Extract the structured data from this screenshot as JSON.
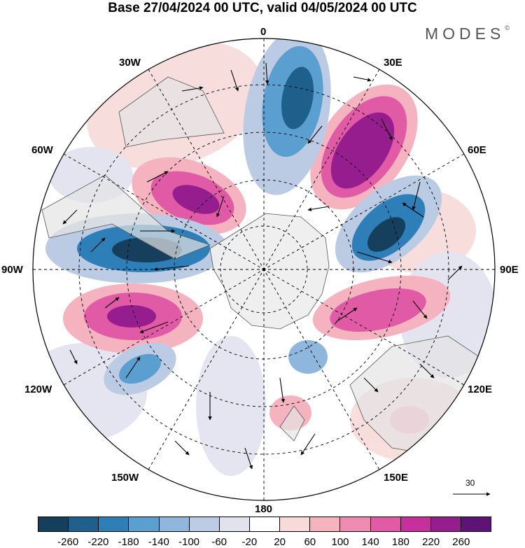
{
  "title": "Base 27/04/2024 00 UTC, valid 04/05/2024 00 UTC",
  "brand": "MODES",
  "brand_mark": "©",
  "longitude_labels": [
    "0",
    "30E",
    "60E",
    "90E",
    "120E",
    "150E",
    "180",
    "150W",
    "120W",
    "90W",
    "60W",
    "30W"
  ],
  "reference_vector": "30",
  "colorbar": {
    "ticks": [
      "-260",
      "-220",
      "-180",
      "-140",
      "-100",
      "-60",
      "-20",
      "20",
      "60",
      "100",
      "140",
      "180",
      "220",
      "260"
    ],
    "colors": [
      "#163f5e",
      "#1f5f8b",
      "#2e7fb8",
      "#5a9fcf",
      "#8fb6dc",
      "#bccbe4",
      "#e2e2ef",
      "#ffffff",
      "#f8dada",
      "#f4b3bf",
      "#ee8bb0",
      "#e05aa6",
      "#c72f9d",
      "#961d8e",
      "#5e1477"
    ]
  },
  "colors": {
    "land": "#e4e4e4",
    "antarctica": "#eeeeee",
    "grid": "#000000"
  },
  "icons": [
    "wind-vector-arrow-icon",
    "reference-vector-arrow-icon"
  ]
}
